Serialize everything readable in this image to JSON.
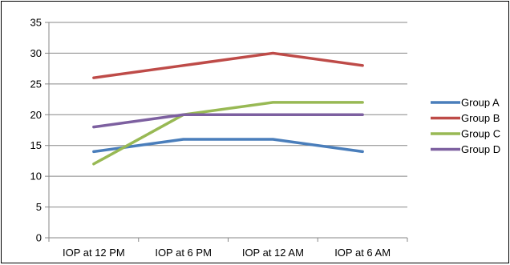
{
  "chart_data": {
    "type": "line",
    "title": "",
    "xlabel": "",
    "ylabel": "",
    "categories": [
      "IOP at 12 PM",
      "IOP at 6 PM",
      "IOP at 12 AM",
      "IOP at 6 AM"
    ],
    "ylim": [
      0,
      35
    ],
    "yticks": [
      0,
      5,
      10,
      15,
      20,
      25,
      30,
      35
    ],
    "grid": true,
    "legend_position": "right",
    "series": [
      {
        "name": "Group A",
        "color": "#4a7ebb",
        "values": [
          14,
          16,
          16,
          14
        ]
      },
      {
        "name": "Group B",
        "color": "#be4b48",
        "values": [
          26,
          28,
          30,
          28
        ]
      },
      {
        "name": "Group C",
        "color": "#98b954",
        "values": [
          12,
          20,
          22,
          22
        ]
      },
      {
        "name": "Group D",
        "color": "#7d60a0",
        "values": [
          18,
          20,
          20,
          20
        ]
      }
    ]
  }
}
